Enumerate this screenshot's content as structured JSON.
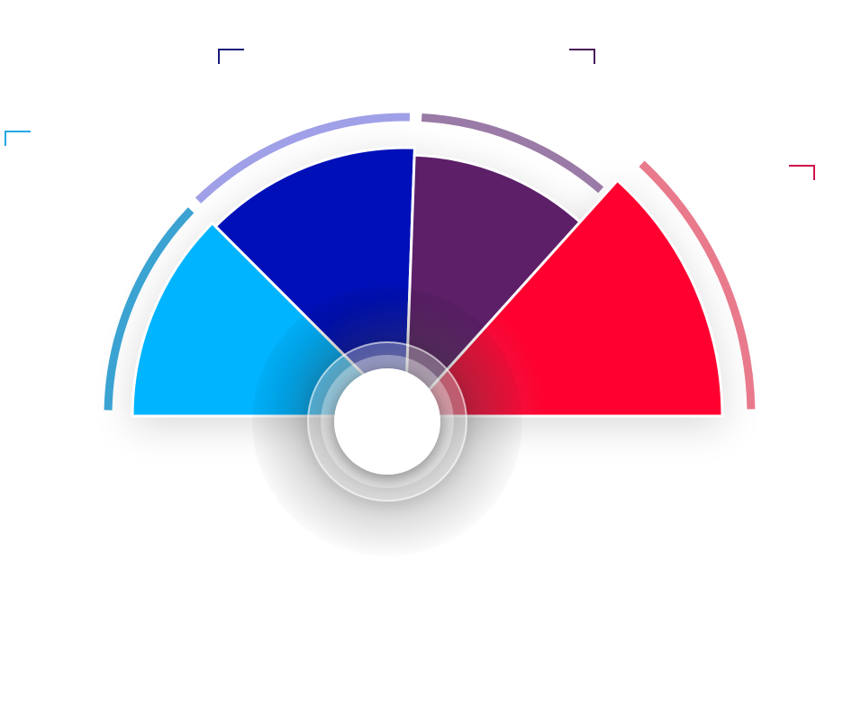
{
  "chart_data": {
    "type": "pie",
    "variant": "semicircle",
    "title": "",
    "legend": "none",
    "data_labels": "none",
    "segments": [
      {
        "color": "#00b4ff",
        "value": 45
      },
      {
        "color": "#0010b8",
        "value": 47
      },
      {
        "color": "#5c1f68",
        "value": 40
      },
      {
        "color": "#ff0030",
        "value": 48
      }
    ],
    "outer_arc_colors": [
      "#3aa3d2",
      "#a0a0e8",
      "#9a7aa6",
      "#e87a8c"
    ],
    "corner_marker_colors": [
      "#23a8e6",
      "#1a1a7a",
      "#4a1a5a",
      "#d0144a"
    ]
  }
}
